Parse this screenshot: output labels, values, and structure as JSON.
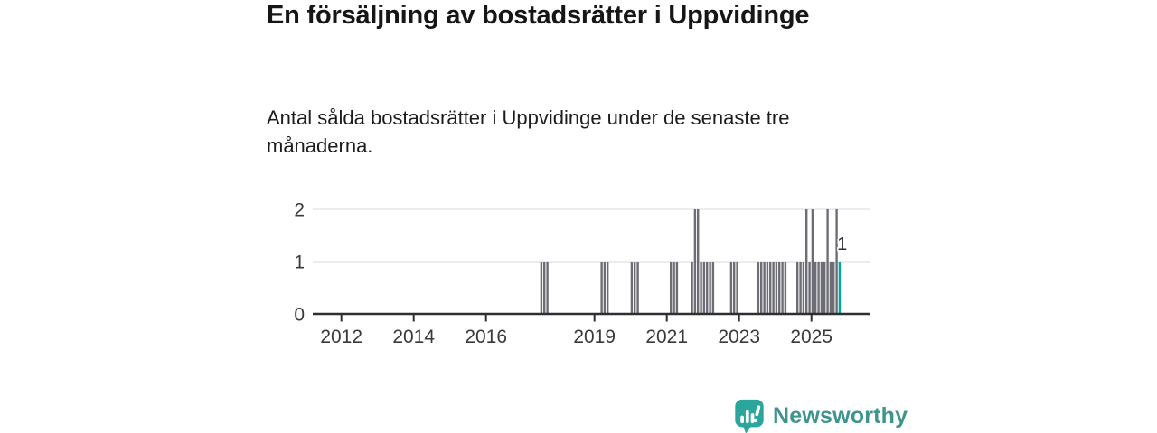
{
  "header": {
    "title": "En försäljning av bostadsrätter i Uppvidinge",
    "subtitle": "Antal sålda bostadsrätter i Uppvidinge under de senaste tre månaderna."
  },
  "footer": {
    "brand": "Newsworthy",
    "logo_icon": "speech-bubble-bar-chart-icon"
  },
  "colors": {
    "bar": "#6d6d75",
    "highlight": "#00a79b",
    "axis": "#2f2f33",
    "gridline": "#e6e6e8",
    "brand_icon": "#2ca69d",
    "brand_text": "#3f948e"
  },
  "chart_data": {
    "type": "bar",
    "title": "En försäljning av bostadsrätter i Uppvidinge",
    "subtitle": "Antal sålda bostadsrätter i Uppvidinge under de senaste tre månaderna.",
    "ylabel": "",
    "xlabel": "",
    "ylim": [
      0,
      2
    ],
    "y_ticks": [
      0,
      1,
      2
    ],
    "x_ticks": [
      2012,
      2014,
      2016,
      2019,
      2021,
      2023,
      2025
    ],
    "x_domain": [
      2011.2,
      2026.5
    ],
    "grid": "horizontal",
    "legend": "none",
    "last_value_label": "1",
    "points": [
      {
        "month": "2017-07",
        "value": 1
      },
      {
        "month": "2017-08",
        "value": 1
      },
      {
        "month": "2017-09",
        "value": 1
      },
      {
        "month": "2019-03",
        "value": 1
      },
      {
        "month": "2019-04",
        "value": 1
      },
      {
        "month": "2019-05",
        "value": 1
      },
      {
        "month": "2020-01",
        "value": 1
      },
      {
        "month": "2020-02",
        "value": 1
      },
      {
        "month": "2020-03",
        "value": 1
      },
      {
        "month": "2021-02",
        "value": 1
      },
      {
        "month": "2021-03",
        "value": 1
      },
      {
        "month": "2021-04",
        "value": 1
      },
      {
        "month": "2021-09",
        "value": 1
      },
      {
        "month": "2021-10",
        "value": 2
      },
      {
        "month": "2021-11",
        "value": 2
      },
      {
        "month": "2021-12",
        "value": 1
      },
      {
        "month": "2022-01",
        "value": 1
      },
      {
        "month": "2022-02",
        "value": 1
      },
      {
        "month": "2022-03",
        "value": 1
      },
      {
        "month": "2022-04",
        "value": 1
      },
      {
        "month": "2022-10",
        "value": 1
      },
      {
        "month": "2022-11",
        "value": 1
      },
      {
        "month": "2022-12",
        "value": 1
      },
      {
        "month": "2023-07",
        "value": 1
      },
      {
        "month": "2023-08",
        "value": 1
      },
      {
        "month": "2023-09",
        "value": 1
      },
      {
        "month": "2023-10",
        "value": 1
      },
      {
        "month": "2023-11",
        "value": 1
      },
      {
        "month": "2023-12",
        "value": 1
      },
      {
        "month": "2024-01",
        "value": 1
      },
      {
        "month": "2024-02",
        "value": 1
      },
      {
        "month": "2024-03",
        "value": 1
      },
      {
        "month": "2024-04",
        "value": 1
      },
      {
        "month": "2024-08",
        "value": 1
      },
      {
        "month": "2024-09",
        "value": 1
      },
      {
        "month": "2024-10",
        "value": 1
      },
      {
        "month": "2024-11",
        "value": 2
      },
      {
        "month": "2024-12",
        "value": 1
      },
      {
        "month": "2025-01",
        "value": 2
      },
      {
        "month": "2025-02",
        "value": 1
      },
      {
        "month": "2025-03",
        "value": 1
      },
      {
        "month": "2025-04",
        "value": 1
      },
      {
        "month": "2025-05",
        "value": 1
      },
      {
        "month": "2025-06",
        "value": 2
      },
      {
        "month": "2025-07",
        "value": 1
      },
      {
        "month": "2025-08",
        "value": 1
      },
      {
        "month": "2025-09",
        "value": 2
      },
      {
        "month": "2025-10",
        "value": 1,
        "highlight": true
      }
    ]
  }
}
